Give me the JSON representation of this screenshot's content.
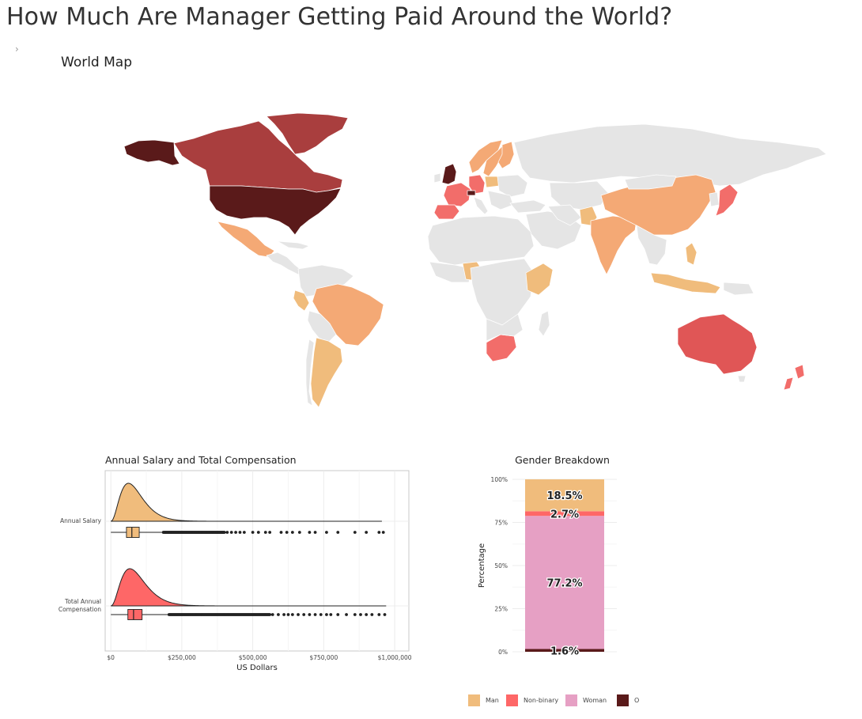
{
  "page": {
    "title": "How Much Are Manager Getting Paid Around the World?",
    "toggle_glyph": "›",
    "toggle_icon": "chevron-right-icon",
    "section_title": "World Map"
  },
  "colors": {
    "no_data": "#e5e5e5",
    "tier_1": "#f0bc7c",
    "tier_2": "#f4a975",
    "tier_3": "#f26d6a",
    "tier_4": "#e05656",
    "tier_5": "#a93e3e",
    "tier_6": "#5a1a1a",
    "man": "#f0bc7c",
    "non_binary": "#fe6767",
    "woman": "#e6a0c4",
    "other": "#5a1a1a"
  },
  "chart_data": [
    {
      "type": "choropleth",
      "title": "",
      "regions": [
        {
          "name": "United States",
          "tier": 6
        },
        {
          "name": "Alaska",
          "tier": 6
        },
        {
          "name": "Canada",
          "tier": 5
        },
        {
          "name": "Greenland",
          "tier": 5
        },
        {
          "name": "United Kingdom",
          "tier": 6
        },
        {
          "name": "Switzerland",
          "tier": 6
        },
        {
          "name": "Australia",
          "tier": 4
        },
        {
          "name": "Germany",
          "tier": 3
        },
        {
          "name": "France",
          "tier": 3
        },
        {
          "name": "Spain",
          "tier": 3
        },
        {
          "name": "Japan",
          "tier": 3
        },
        {
          "name": "New Zealand",
          "tier": 3
        },
        {
          "name": "South Africa",
          "tier": 3
        },
        {
          "name": "China",
          "tier": 2
        },
        {
          "name": "India",
          "tier": 2
        },
        {
          "name": "Mexico",
          "tier": 2
        },
        {
          "name": "Brazil",
          "tier": 2
        },
        {
          "name": "Norway",
          "tier": 2
        },
        {
          "name": "Sweden",
          "tier": 2
        },
        {
          "name": "Finland",
          "tier": 2
        },
        {
          "name": "Argentina",
          "tier": 1
        },
        {
          "name": "Peru",
          "tier": 1
        },
        {
          "name": "Nigeria",
          "tier": 1
        },
        {
          "name": "Kenya",
          "tier": 1
        },
        {
          "name": "Pakistan",
          "tier": 1
        },
        {
          "name": "Philippines",
          "tier": 1
        },
        {
          "name": "Indonesia",
          "tier": 1
        },
        {
          "name": "Poland",
          "tier": 1
        }
      ]
    },
    {
      "type": "raincloud",
      "title": "Annual Salary and Total Compensation",
      "xlabel": "US Dollars",
      "ylabel": "",
      "x_ticks": [
        "$0",
        "$250,000",
        "$500,000",
        "$750,000",
        "$1,000,000"
      ],
      "x_tick_values": [
        0,
        250000,
        500000,
        750000,
        1000000
      ],
      "xlim": [
        -20000,
        1050000
      ],
      "grid": true,
      "series": [
        {
          "name": "Annual Salary",
          "label_lines": [
            "Annual Salary"
          ],
          "color": "#f0bc7c",
          "peak": 62000,
          "density_scale": 1.0,
          "box": {
            "min": 0,
            "q1": 55000,
            "median": 74000,
            "q3": 100000,
            "max": 180000
          },
          "outliers": {
            "from": 185000,
            "to": 400000,
            "count": 90,
            "sparse": [
              410000,
              425000,
              440000,
              455000,
              470000,
              500000,
              520000,
              545000,
              560000,
              600000,
              620000,
              640000,
              665000,
              700000,
              720000,
              760000,
              800000,
              860000,
              900000,
              945000,
              960000
            ]
          },
          "tail_end": 955000
        },
        {
          "name": "Total Annual Compensation",
          "label_lines": [
            "Total Annual",
            "Compensation"
          ],
          "color": "#fe6767",
          "peak": 67000,
          "density_scale": 0.98,
          "box": {
            "min": 0,
            "q1": 60000,
            "median": 80000,
            "q3": 110000,
            "max": 200000
          },
          "outliers": {
            "from": 205000,
            "to": 560000,
            "count": 130,
            "sparse": [
              570000,
              590000,
              610000,
              625000,
              640000,
              660000,
              680000,
              700000,
              720000,
              740000,
              760000,
              775000,
              800000,
              830000,
              860000,
              880000,
              900000,
              920000,
              945000,
              965000
            ]
          },
          "tail_end": 970000
        }
      ]
    },
    {
      "type": "bar",
      "stacked": true,
      "title": "Gender Breakdown",
      "xlabel": "",
      "ylabel": "Percentage",
      "ylim": [
        0,
        100
      ],
      "y_ticks": [
        "0%",
        "25%",
        "50%",
        "75%",
        "100%"
      ],
      "y_tick_values": [
        0,
        25,
        50,
        75,
        100
      ],
      "legend_position": "bottom",
      "series": [
        {
          "name": "Other",
          "legend_label": "O",
          "value": 1.6,
          "label": "1.6%",
          "color": "#5a1a1a"
        },
        {
          "name": "Woman",
          "legend_label": "Woman",
          "value": 77.2,
          "label": "77.2%",
          "color": "#e6a0c4"
        },
        {
          "name": "Non-binary",
          "legend_label": "Non-binary",
          "value": 2.7,
          "label": "2.7%",
          "color": "#fe6767"
        },
        {
          "name": "Man",
          "legend_label": "Man",
          "value": 18.5,
          "label": "18.5%",
          "color": "#f0bc7c"
        }
      ]
    }
  ]
}
